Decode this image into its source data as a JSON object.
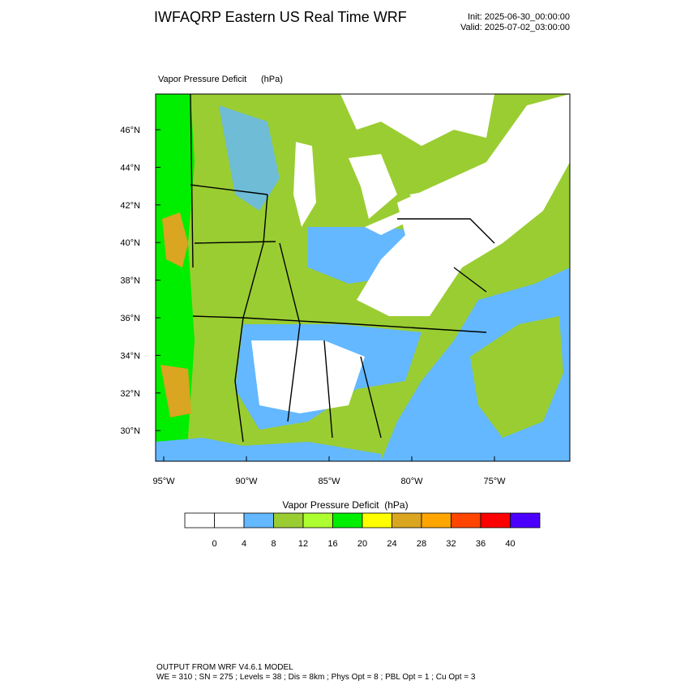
{
  "header": {
    "title": "IWFAQRP Eastern US Real Time WRF",
    "init": "Init: 2025-06-30_00:00:00",
    "valid": "Valid: 2025-07-02_03:00:00"
  },
  "map": {
    "field": "Vapor Pressure Deficit",
    "units": "(hPa)",
    "lat_labels": [
      "46°N",
      "44°N",
      "42°N",
      "40°N",
      "38°N",
      "36°N",
      "34°N",
      "32°N",
      "30°N"
    ],
    "lon_labels": [
      "95°W",
      "90°W",
      "85°W",
      "80°W",
      "75°W"
    ]
  },
  "colorbar": {
    "title": "Vapor Pressure Deficit  (hPa)",
    "colors": [
      "#ffffff",
      "#ffffff",
      "#63b8ff",
      "#9acd32",
      "#adff2f",
      "#00ee00",
      "#ffff00",
      "#daa520",
      "#ffa500",
      "#ff4500",
      "#ff0000",
      "#4b00ff"
    ],
    "levels": [
      0,
      4,
      8,
      12,
      16,
      20,
      24,
      28,
      32,
      36,
      40
    ]
  },
  "footer": {
    "line1": "OUTPUT FROM WRF V4.6.1 MODEL",
    "line2": "WE = 310 ; SN = 275 ; Levels = 38 ; Dis = 8km ; Phys Opt = 8 ; PBL Opt = 1 ; Cu Opt = 3"
  }
}
